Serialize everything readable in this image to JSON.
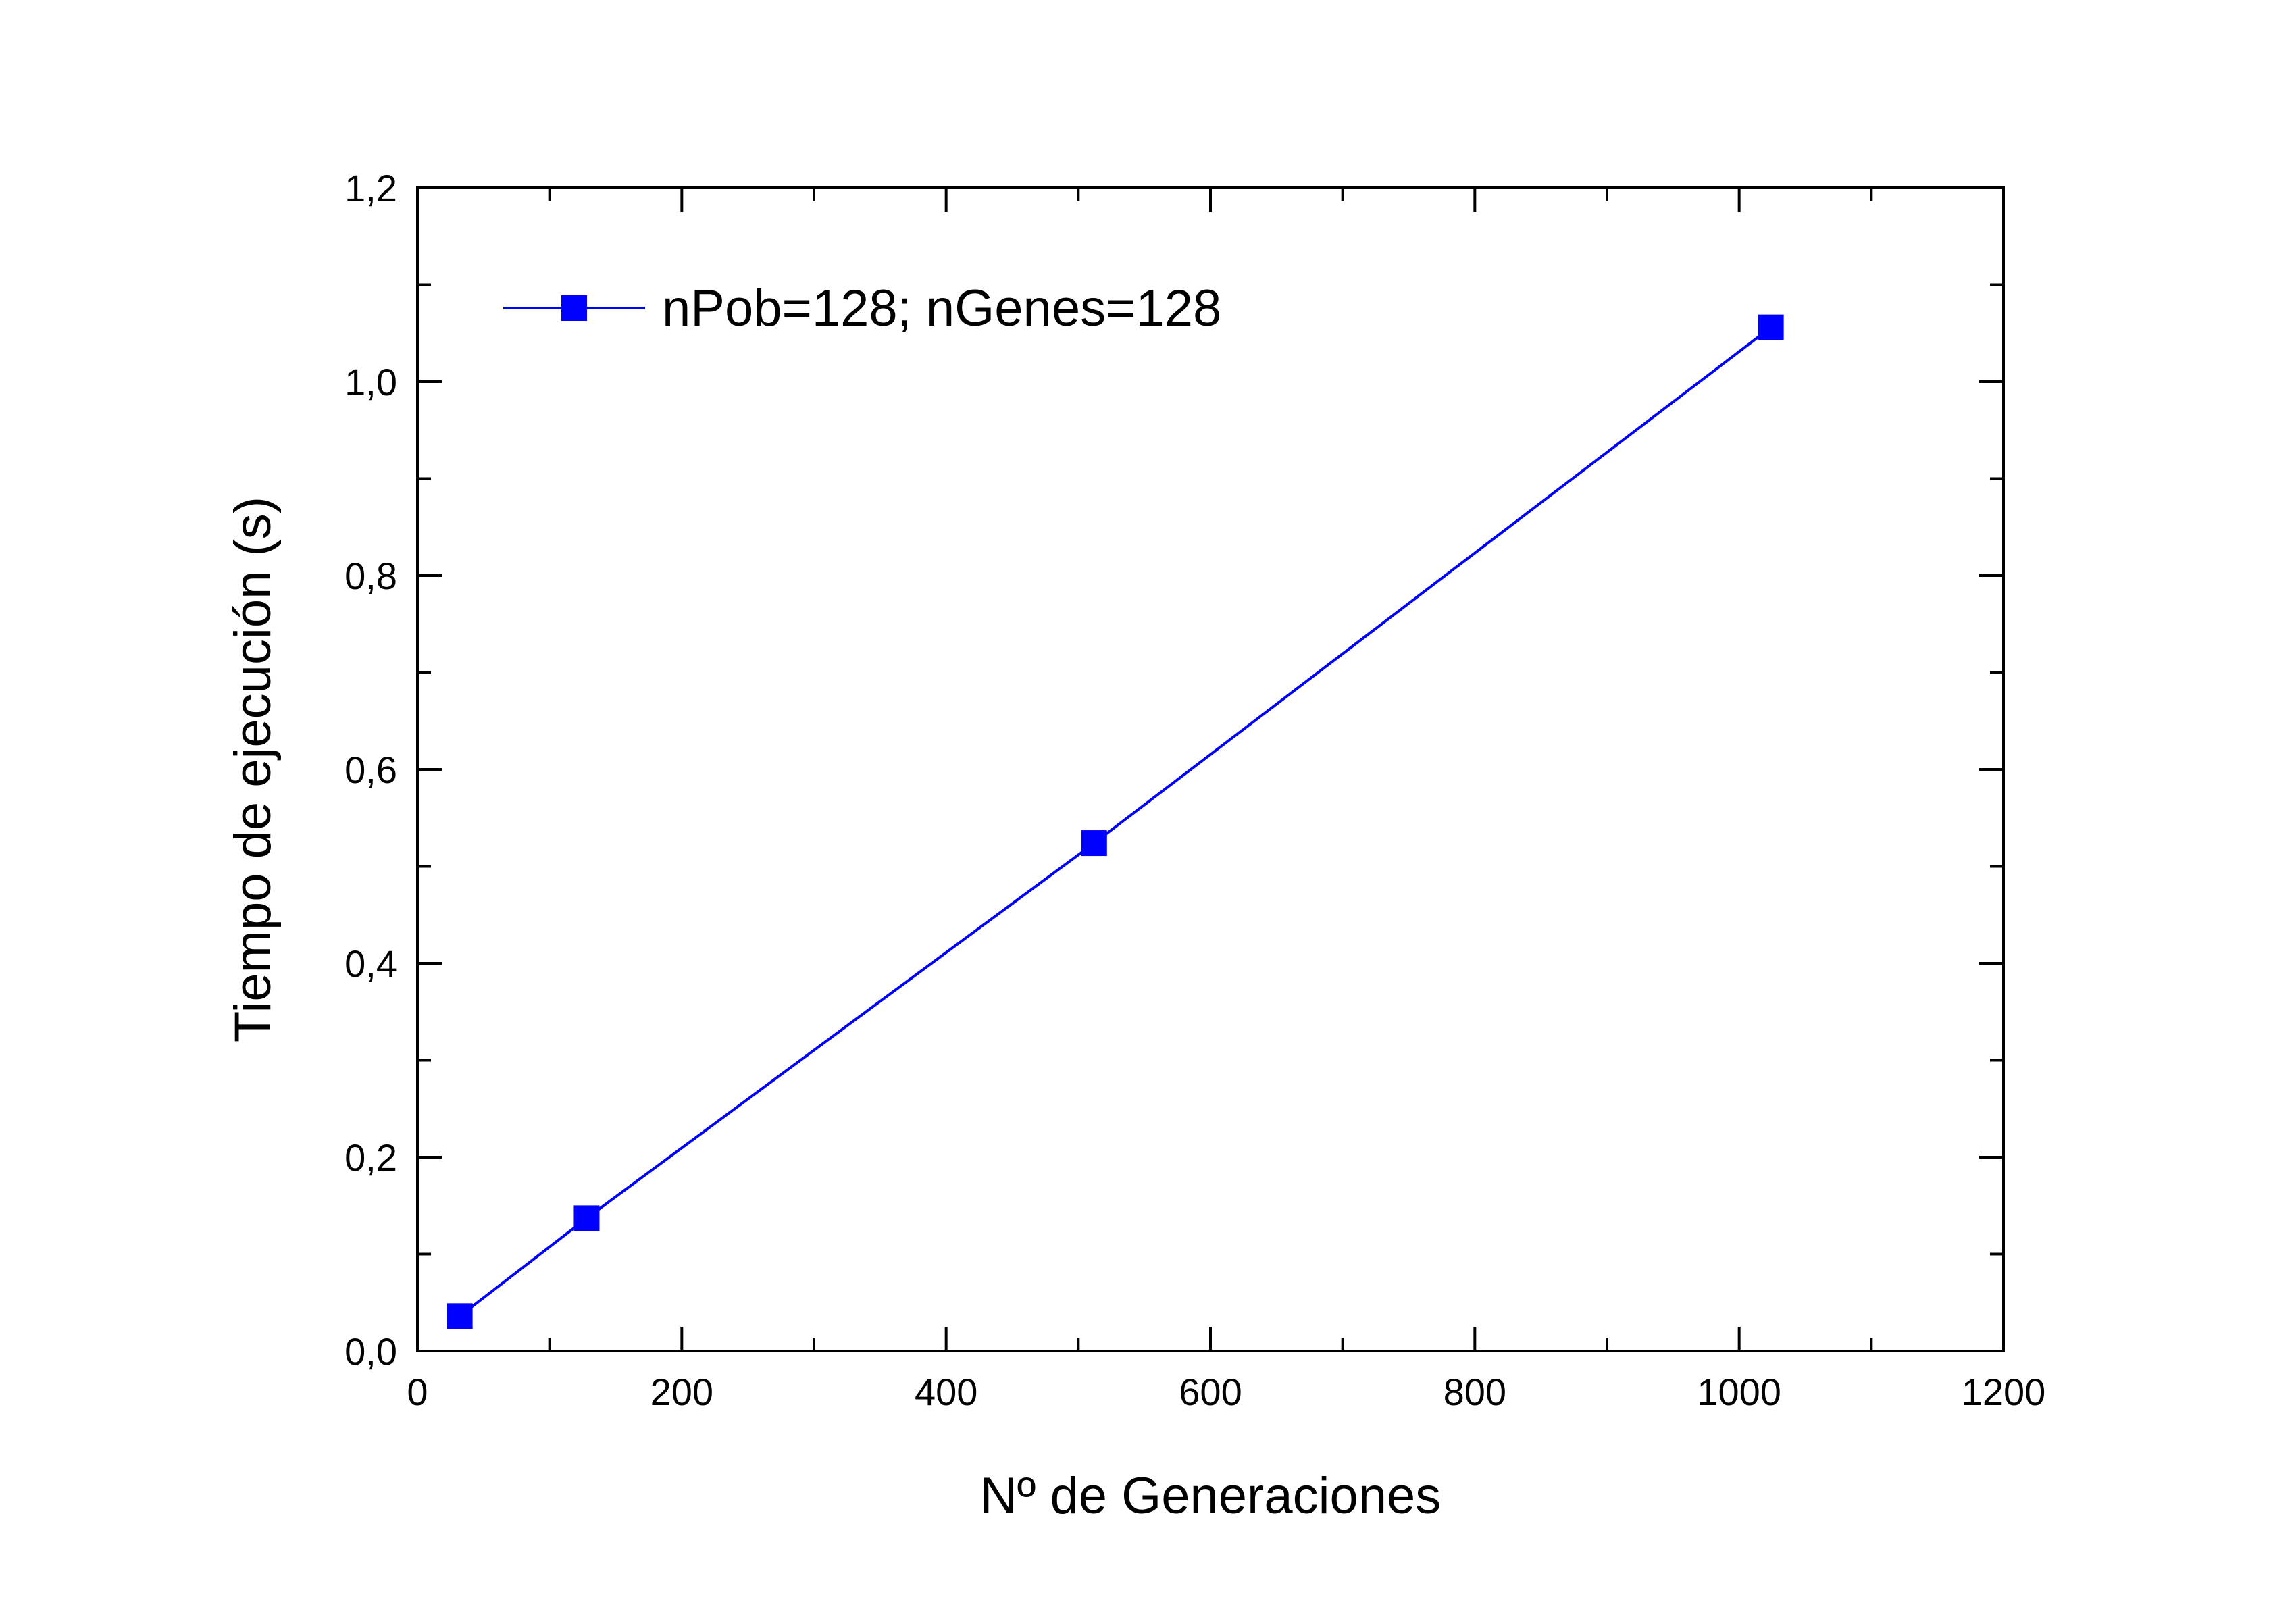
{
  "chart_data": {
    "type": "line",
    "title": "",
    "xlabel": "Nº de Generaciones",
    "ylabel": "Tiempo de ejecución (s)",
    "xlim": [
      0,
      1200
    ],
    "ylim": [
      0,
      1.2
    ],
    "x_ticks": [
      {
        "value": 0,
        "label": "0"
      },
      {
        "value": 200,
        "label": "200"
      },
      {
        "value": 400,
        "label": "400"
      },
      {
        "value": 600,
        "label": "600"
      },
      {
        "value": 800,
        "label": "800"
      },
      {
        "value": 1000,
        "label": "1000"
      },
      {
        "value": 1200,
        "label": "1200"
      }
    ],
    "x_minor_ticks": [
      100,
      300,
      500,
      700,
      900,
      1100
    ],
    "y_ticks": [
      {
        "value": 0,
        "label": "0,0"
      },
      {
        "value": 0.2,
        "label": "0,2"
      },
      {
        "value": 0.4,
        "label": "0,4"
      },
      {
        "value": 0.6,
        "label": "0,6"
      },
      {
        "value": 0.8,
        "label": "0,8"
      },
      {
        "value": 1.0,
        "label": "1,0"
      },
      {
        "value": 1.2,
        "label": "1,2"
      }
    ],
    "y_minor_ticks": [
      0.1,
      0.3,
      0.5,
      0.7,
      0.9,
      1.1
    ],
    "grid": false,
    "legend_position": "top-left",
    "series": [
      {
        "name": "nPob=128; nGenes=128",
        "color": "#0000ff",
        "marker": "square",
        "x": [
          32,
          128,
          512,
          1024
        ],
        "y": [
          0.036,
          0.137,
          0.524,
          1.056
        ]
      }
    ]
  }
}
